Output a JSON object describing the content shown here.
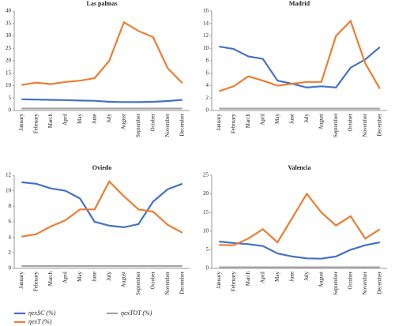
{
  "legend": [
    {
      "name": "ηexSC (%)",
      "color": "#4472c4"
    },
    {
      "name": "ηexT (%)",
      "color": "#ed7d31"
    },
    {
      "name": "ηexTOT (%)",
      "color": "#a5a5a5"
    }
  ],
  "chart_data": [
    {
      "type": "line",
      "title": "Las palmas",
      "categories": [
        "January",
        "February",
        "March",
        "April",
        "May",
        "June",
        "July",
        "August",
        "September",
        "October",
        "November",
        "December"
      ],
      "ylim": [
        0,
        40
      ],
      "yticks": [
        0,
        5,
        10,
        15,
        20,
        25,
        30,
        35,
        40
      ],
      "series": [
        {
          "values": [
            4.5,
            4.4,
            4.3,
            4.2,
            4.0,
            3.9,
            3.5,
            3.4,
            3.4,
            3.5,
            3.8,
            4.3
          ]
        },
        {
          "values": [
            10.3,
            11.2,
            10.6,
            11.5,
            12,
            13,
            20,
            35.5,
            32,
            29.5,
            17,
            11
          ]
        },
        {
          "values": [
            0.8,
            0.8,
            0.8,
            0.8,
            0.8,
            0.8,
            0.8,
            0.8,
            0.8,
            0.8,
            0.8,
            0.8
          ]
        }
      ]
    },
    {
      "type": "line",
      "title": "Madrid",
      "categories": [
        "January",
        "February",
        "March",
        "April",
        "May",
        "June",
        "July",
        "August",
        "September",
        "October",
        "November",
        "December"
      ],
      "ylim": [
        0,
        16
      ],
      "yticks": [
        0,
        2,
        4,
        6,
        8,
        10,
        12,
        14,
        16
      ],
      "series": [
        {
          "values": [
            10.3,
            9.9,
            8.7,
            8.3,
            4.8,
            4.3,
            3.7,
            3.9,
            3.7,
            6.9,
            8.2,
            10.2
          ]
        },
        {
          "values": [
            3.1,
            3.9,
            5.5,
            4.8,
            4.0,
            4.3,
            4.6,
            4.6,
            12,
            14.4,
            7.6,
            3.5
          ]
        },
        {
          "values": [
            0.3,
            0.3,
            0.3,
            0.3,
            0.3,
            0.3,
            0.3,
            0.3,
            0.3,
            0.3,
            0.3,
            0.3
          ]
        }
      ]
    },
    {
      "type": "line",
      "title": "Oviedo",
      "categories": [
        "January",
        "February",
        "March",
        "April",
        "May",
        "June",
        "July",
        "August",
        "September",
        "October",
        "November",
        "December"
      ],
      "ylim": [
        0,
        12
      ],
      "yticks": [
        0,
        2,
        4,
        6,
        8,
        10,
        12
      ],
      "series": [
        {
          "values": [
            11.1,
            10.9,
            10.3,
            10,
            9,
            6,
            5.5,
            5.3,
            5.7,
            8.6,
            10.2,
            10.9
          ]
        },
        {
          "values": [
            4.1,
            4.4,
            5.4,
            6.2,
            7.6,
            7.6,
            11.2,
            9.3,
            7.6,
            7.3,
            5.6,
            4.6
          ]
        },
        {
          "values": [
            0.3,
            0.3,
            0.3,
            0.3,
            0.3,
            0.3,
            0.3,
            0.3,
            0.3,
            0.3,
            0.3,
            0.3
          ]
        }
      ]
    },
    {
      "type": "line",
      "title": "Valencia",
      "categories": [
        "January",
        "February",
        "March",
        "April",
        "May",
        "June",
        "July",
        "August",
        "September",
        "October",
        "November",
        "December"
      ],
      "ylim": [
        0,
        25
      ],
      "yticks": [
        0,
        5,
        10,
        15,
        20,
        25
      ],
      "series": [
        {
          "values": [
            7.2,
            6.8,
            6.5,
            6,
            4,
            3.2,
            2.7,
            2.6,
            3.2,
            5,
            6.2,
            7
          ]
        },
        {
          "values": [
            6.3,
            6.2,
            8,
            10.5,
            7,
            13.5,
            20,
            15,
            11.5,
            14,
            8,
            10.5
          ]
        },
        {
          "values": [
            0.3,
            0.3,
            0.3,
            0.3,
            0.3,
            0.3,
            0.3,
            0.3,
            0.3,
            0.3,
            0.3,
            0.3
          ]
        }
      ]
    }
  ]
}
